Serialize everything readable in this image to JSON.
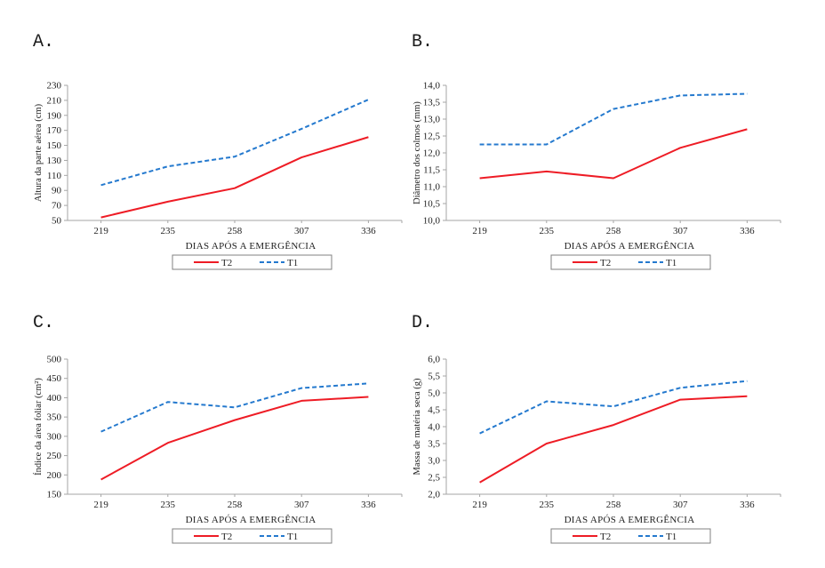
{
  "page": {
    "background": "#ffffff"
  },
  "colors": {
    "t2_red": "#ee1c25",
    "t1_blue": "#2479ce",
    "axis_gray": "#a6a6a6",
    "legend_border": "#808080",
    "text": "#1f1f1f"
  },
  "chart_data": [
    {
      "id": "A",
      "panel_label": "A.",
      "type": "line",
      "title": "",
      "xlabel": "DIAS APÓS A EMERGÊNCIA",
      "ylabel": "Altura da parte aérea (cm)",
      "categories": [
        "219",
        "235",
        "258",
        "307",
        "336"
      ],
      "ylim": [
        50,
        230
      ],
      "y_tick_labels": [
        "50",
        "70",
        "90",
        "110",
        "130",
        "150",
        "170",
        "190",
        "210",
        "230"
      ],
      "grid": false,
      "legend_position": "bottom",
      "series": [
        {
          "name": "T2",
          "color": "#ee1c25",
          "style": "solid",
          "values": [
            54,
            75,
            93,
            134,
            161
          ]
        },
        {
          "name": "T1",
          "color": "#2479ce",
          "style": "dashed",
          "values": [
            97,
            122,
            135,
            172,
            211
          ]
        }
      ]
    },
    {
      "id": "B",
      "panel_label": "B.",
      "type": "line",
      "title": "",
      "xlabel": "DIAS APÓS A EMERGÊNCIA",
      "ylabel": "Diâmetro dos colmos (mm)",
      "categories": [
        "219",
        "235",
        "258",
        "307",
        "336"
      ],
      "ylim": [
        10.0,
        14.0
      ],
      "y_tick_labels": [
        "10,0",
        "10,5",
        "11,0",
        "11,5",
        "12,0",
        "12,5",
        "13,0",
        "13,5",
        "14,0"
      ],
      "grid": false,
      "legend_position": "bottom",
      "series": [
        {
          "name": "T2",
          "color": "#ee1c25",
          "style": "solid",
          "values": [
            11.25,
            11.45,
            11.25,
            12.15,
            12.7
          ]
        },
        {
          "name": "T1",
          "color": "#2479ce",
          "style": "dashed",
          "values": [
            12.25,
            12.25,
            13.3,
            13.7,
            13.75
          ]
        }
      ]
    },
    {
      "id": "C",
      "panel_label": "C.",
      "type": "line",
      "title": "",
      "xlabel": "DIAS APÓS A EMERGÊNCIA",
      "ylabel": "Índice da área foliar (cm²)",
      "categories": [
        "219",
        "235",
        "258",
        "307",
        "336"
      ],
      "ylim": [
        150,
        500
      ],
      "y_tick_labels": [
        "150",
        "200",
        "250",
        "300",
        "350",
        "400",
        "450",
        "500"
      ],
      "grid": false,
      "legend_position": "bottom",
      "series": [
        {
          "name": "T2",
          "color": "#ee1c25",
          "style": "solid",
          "values": [
            188,
            283,
            342,
            392,
            402
          ]
        },
        {
          "name": "T1",
          "color": "#2479ce",
          "style": "dashed",
          "values": [
            312,
            389,
            375,
            425,
            437
          ]
        }
      ]
    },
    {
      "id": "D",
      "panel_label": "D.",
      "type": "line",
      "title": "",
      "xlabel": "DIAS APÓS A EMERGÊNCIA",
      "ylabel": "Massa de matéria seca (g)",
      "categories": [
        "219",
        "235",
        "258",
        "307",
        "336"
      ],
      "ylim": [
        2.0,
        6.0
      ],
      "y_tick_labels": [
        "2,0",
        "2,5",
        "3,0",
        "3,5",
        "4,0",
        "4,5",
        "5,0",
        "5,5",
        "6,0"
      ],
      "grid": false,
      "legend_position": "bottom",
      "series": [
        {
          "name": "T2",
          "color": "#ee1c25",
          "style": "solid",
          "values": [
            2.35,
            3.5,
            4.05,
            4.8,
            4.9
          ]
        },
        {
          "name": "T1",
          "color": "#2479ce",
          "style": "dashed",
          "values": [
            3.8,
            4.75,
            4.6,
            5.15,
            5.35
          ]
        }
      ]
    }
  ]
}
